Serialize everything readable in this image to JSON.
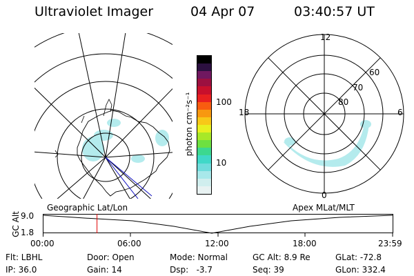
{
  "header": {
    "title": "Ultraviolet Imager",
    "date": "04 Apr 07",
    "time": "03:40:57 UT"
  },
  "colorbar": {
    "label": "photon cm⁻²s⁻¹",
    "ticks": [
      "100",
      "10"
    ],
    "colors": [
      "#e8f2f2",
      "#d0eeee",
      "#a8e8ea",
      "#70dcdc",
      "#40d8c8",
      "#3cd890",
      "#6ee040",
      "#a8e828",
      "#e8f020",
      "#f8c818",
      "#f89810",
      "#f85c10",
      "#e82020",
      "#c8102c",
      "#9c1040",
      "#701860",
      "#2c1040",
      "#000000"
    ]
  },
  "labels": {
    "geographic": "Geographic Lat/Lon",
    "apex": "Apex MLat/MLT"
  },
  "polar": {
    "mlt_labels": [
      "12",
      "18",
      "6",
      "0"
    ],
    "lat_labels": [
      "60",
      "70",
      "80"
    ]
  },
  "timeline": {
    "ylabel": "GC Alt",
    "yticks": [
      "9.0",
      "1.8"
    ],
    "xticks": [
      "00:00",
      "06:00",
      "12:00",
      "18:00",
      "23:59"
    ],
    "marker_fraction": 0.154
  },
  "info": {
    "flt": "Flt: LBHL",
    "ip": "IP: 36.0",
    "door": "Door: Open",
    "gain": "Gain: 14",
    "mode": "Mode: Normal",
    "dsp": "Dsp:   -3.7",
    "gc_alt": "GC Alt: 8.9 Re",
    "seq": "Seq: 39",
    "glat": "GLat: -72.8",
    "glon": "GLon: 332.4"
  }
}
